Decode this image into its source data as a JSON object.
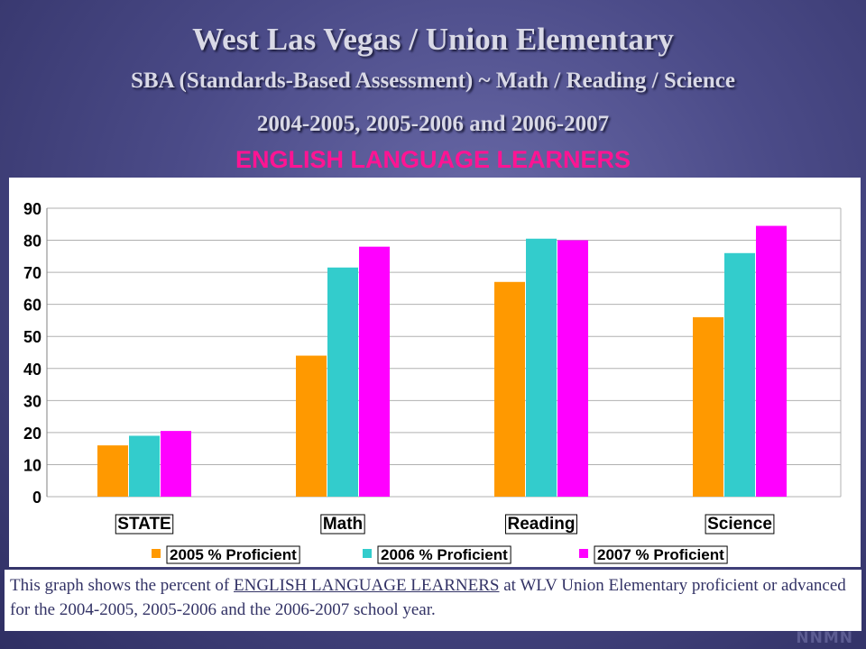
{
  "header": {
    "title": "West Las Vegas / Union Elementary",
    "subtitle": "SBA (Standards-Based Assessment) ~ Math / Reading / Science",
    "years": "2004-2005, 2005-2006 and 2006-2007",
    "group": "ENGLISH LANGUAGE LEARNERS"
  },
  "caption": {
    "part1": "This graph shows the percent of ",
    "highlight": "ENGLISH LANGUAGE LEARNERS",
    "part2": "  at WLV Union Elementary proficient or advanced for the 2004-2005, 2005-2006 and the 2006-2007 school year."
  },
  "watermark": "NNMN",
  "chart_data": {
    "type": "bar",
    "categories": [
      "STATE",
      "Math",
      "Reading",
      "Science"
    ],
    "series": [
      {
        "name": "2005 % Proficient",
        "color": "#ff9900",
        "values": [
          16,
          44,
          67,
          56
        ]
      },
      {
        "name": "2006  % Proficient",
        "color": "#33cccc",
        "values": [
          19,
          71.5,
          80.5,
          76
        ]
      },
      {
        "name": "2007 % Proficient",
        "color": "#ff00ff",
        "values": [
          20.5,
          78,
          80,
          84.5
        ]
      }
    ],
    "ylim": [
      0,
      90
    ],
    "yticks": [
      0,
      10,
      20,
      30,
      40,
      50,
      60,
      70,
      80,
      90
    ],
    "grid": true,
    "legend": "bottom"
  }
}
